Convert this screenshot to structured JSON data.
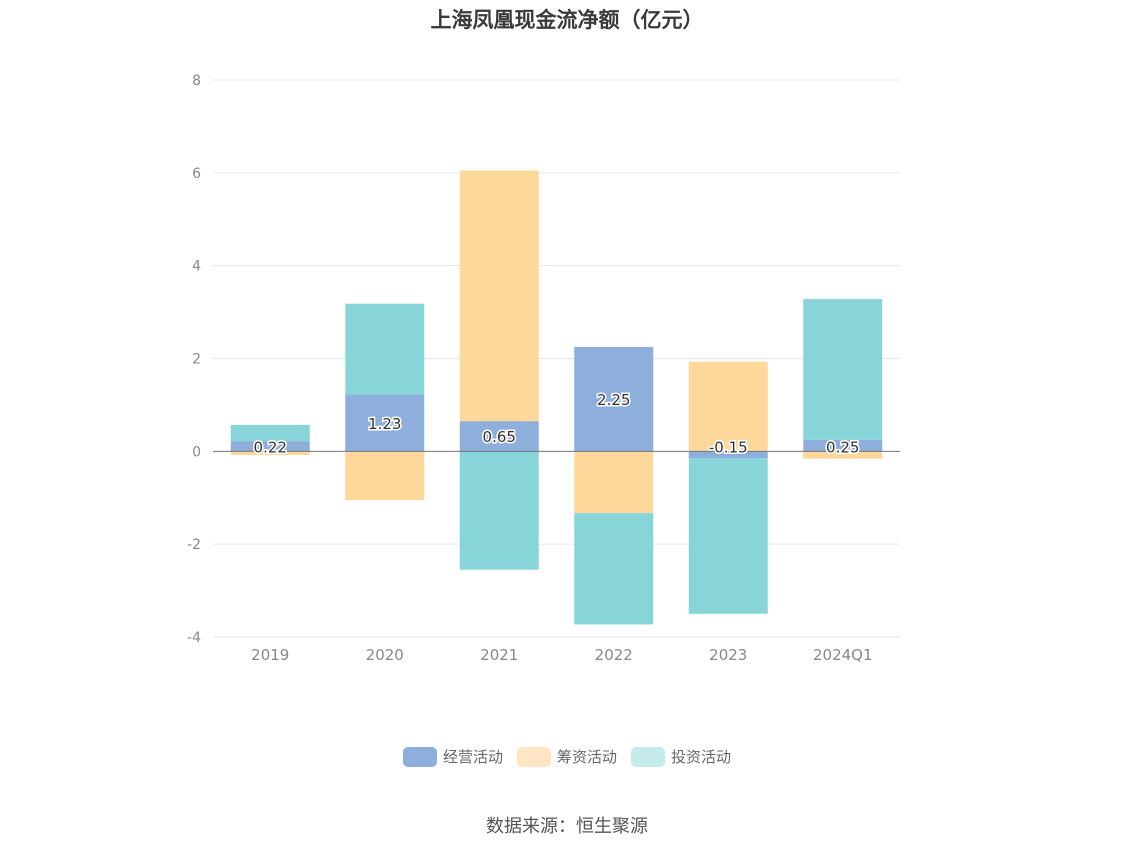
{
  "title": "上海凤凰现金流净额（亿元）",
  "source": "数据来源：恒生聚源",
  "colors": {
    "经营活动": "#8eaedb",
    "筹资活动": "#fed89b",
    "投资活动": "#88d5d9"
  },
  "chart_data": {
    "type": "bar",
    "stacked": true,
    "categories": [
      "2019",
      "2020",
      "2021",
      "2022",
      "2023",
      "2024Q1"
    ],
    "series": [
      {
        "name": "经营活动",
        "values": [
          0.22,
          1.23,
          0.65,
          2.25,
          -0.15,
          0.25
        ],
        "labels": [
          "0.22",
          "1.23",
          "0.65",
          "2.25",
          "-0.15",
          "0.25"
        ]
      },
      {
        "name": "筹资活动",
        "values": [
          -0.08,
          -1.05,
          5.4,
          -1.33,
          1.93,
          -0.16
        ]
      },
      {
        "name": "投资活动",
        "values": [
          0.35,
          1.95,
          -2.55,
          -2.4,
          -3.35,
          3.03
        ]
      }
    ],
    "ylim": [
      -4,
      8
    ],
    "yticks": [
      8,
      6,
      4,
      2,
      0,
      -2,
      -4
    ],
    "grid": true,
    "legend": "bottom"
  }
}
